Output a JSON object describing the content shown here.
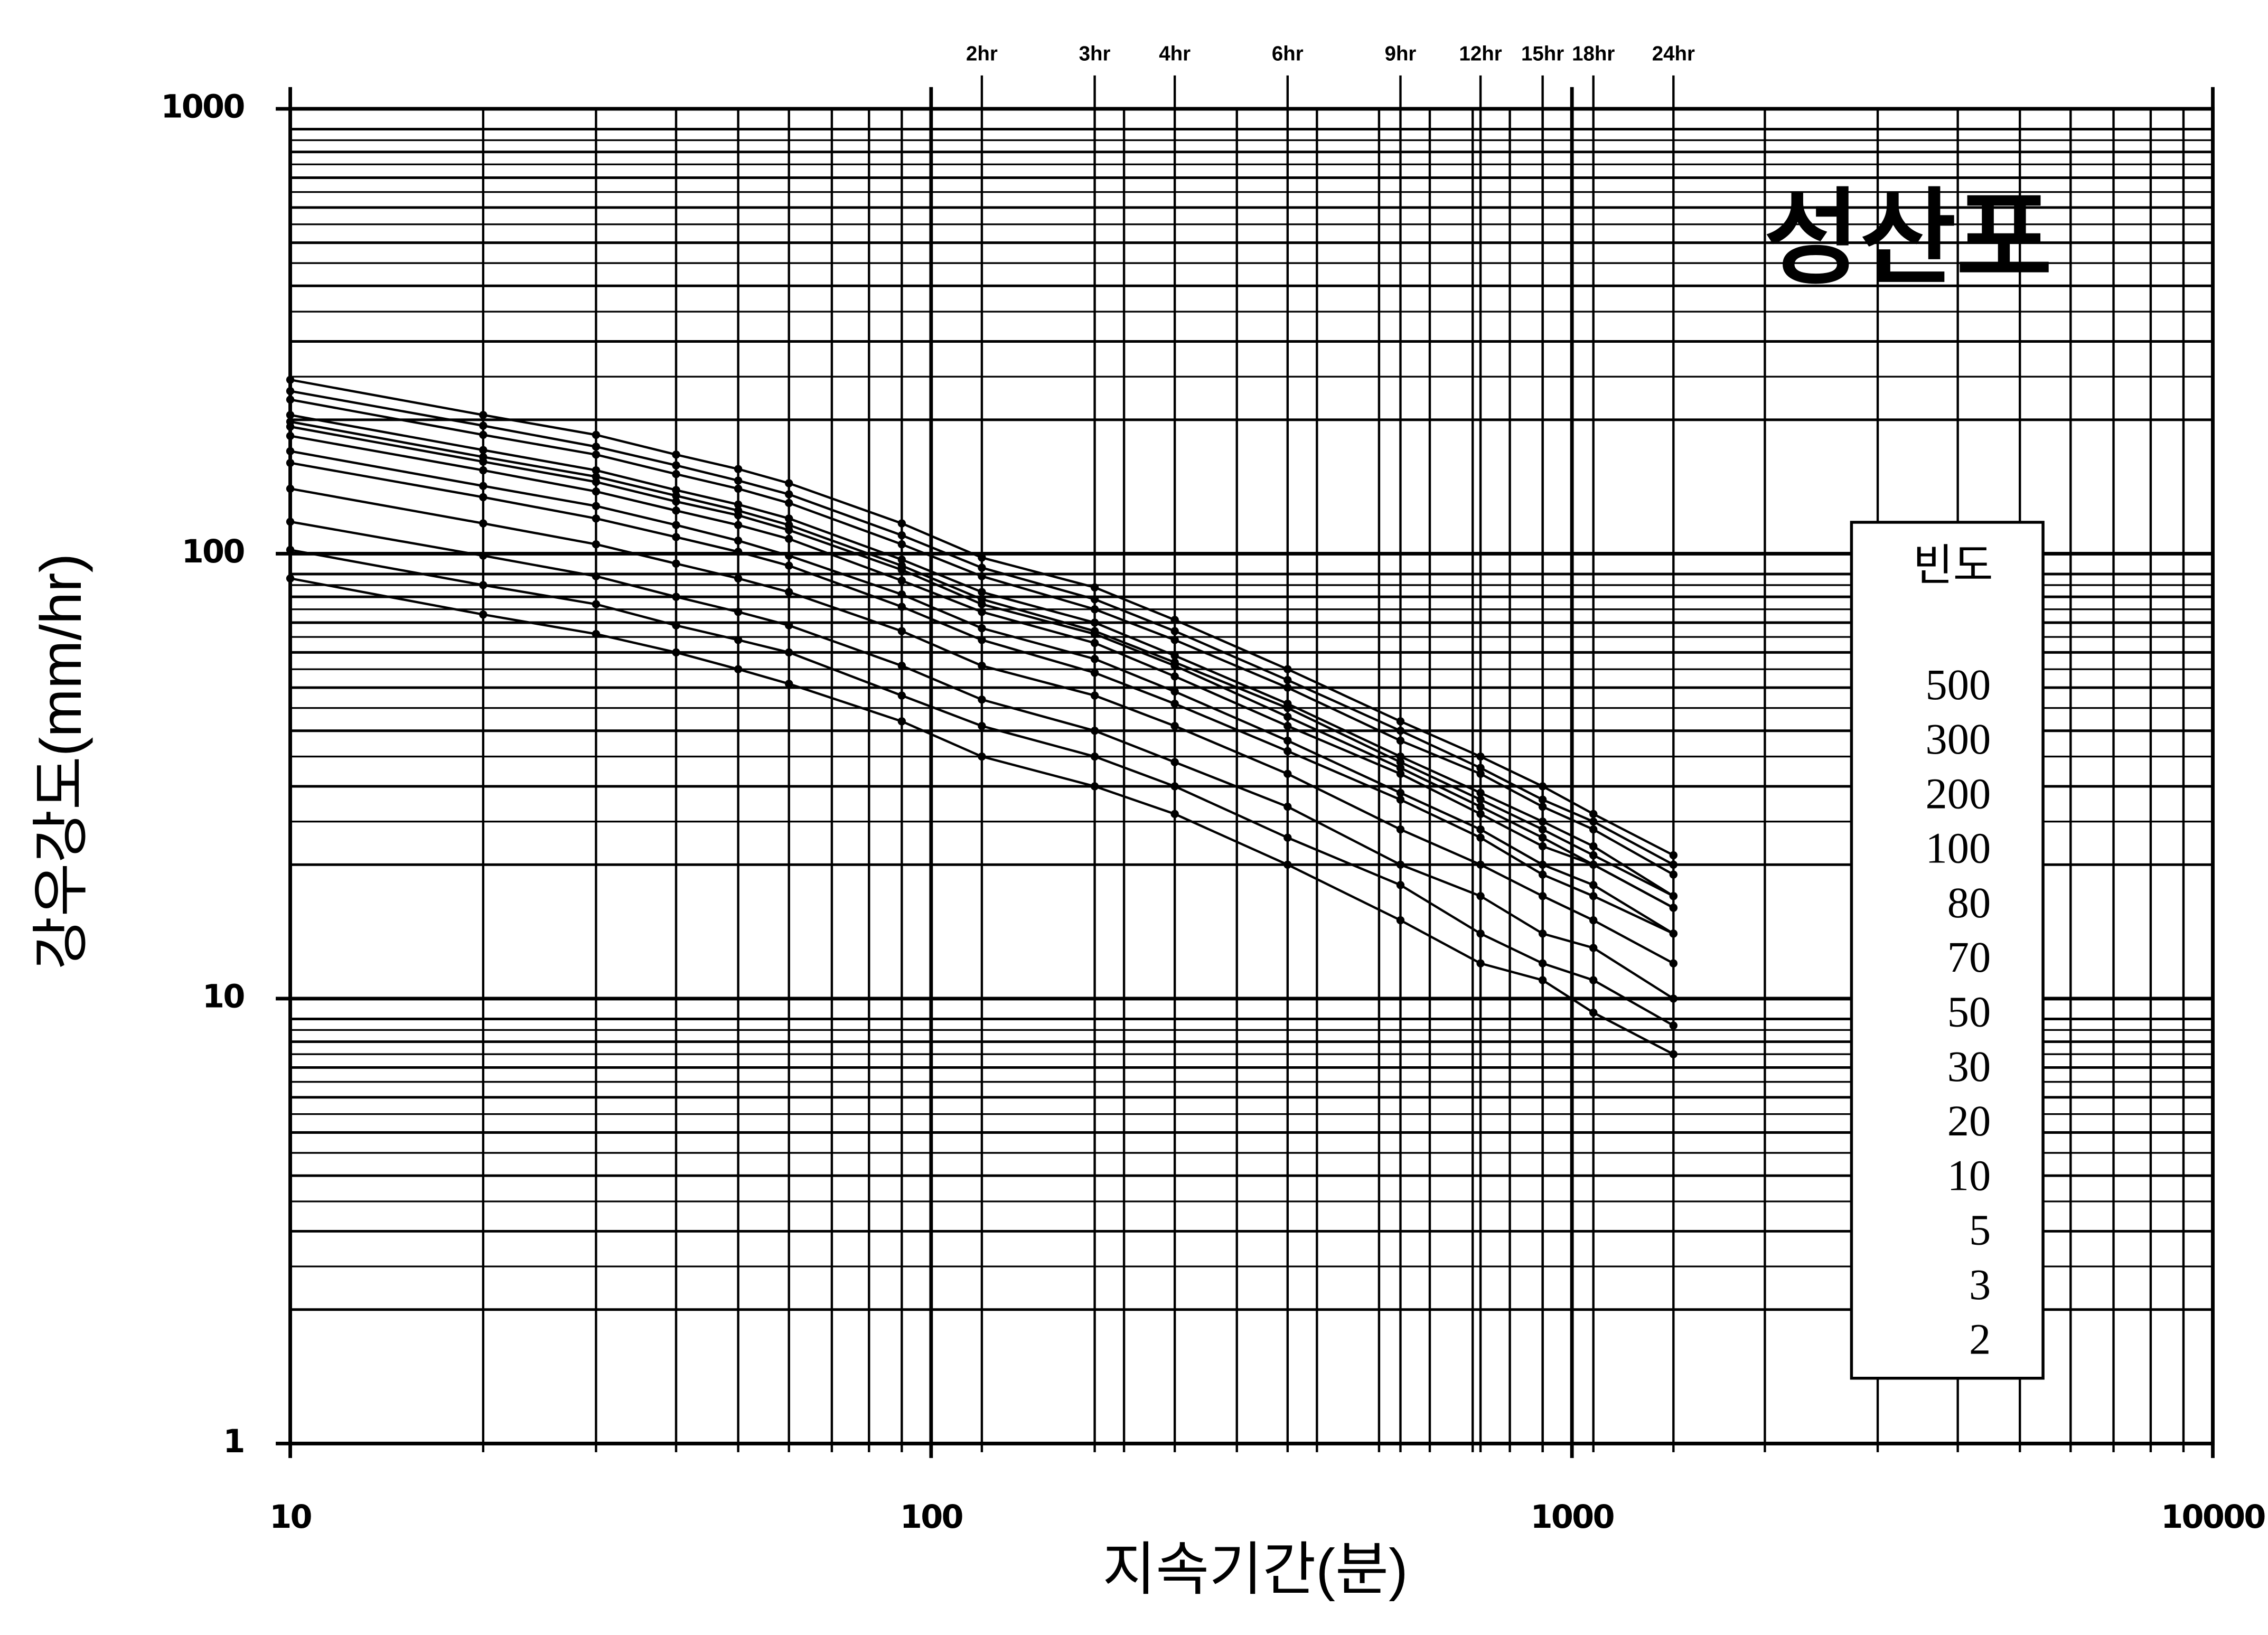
{
  "chart_data": {
    "type": "line",
    "title": "성산포",
    "x_label": "지속기간(분)",
    "y_label": "강우강도(mm/hr)",
    "log_x": true,
    "log_y": true,
    "grid": true,
    "xlim": [
      10,
      10000
    ],
    "ylim": [
      1,
      1000
    ],
    "xticks": [
      10,
      100,
      1000,
      10000
    ],
    "yticks": [
      1,
      10,
      100,
      1000
    ],
    "x2ticks": [
      {
        "value": 120,
        "label": "2hr"
      },
      {
        "value": 180,
        "label": "3hr"
      },
      {
        "value": 240,
        "label": "4hr"
      },
      {
        "value": 360,
        "label": "6hr"
      },
      {
        "value": 540,
        "label": "9hr"
      },
      {
        "value": 720,
        "label": "12hr"
      },
      {
        "value": 900,
        "label": "15hr"
      },
      {
        "value": 1080,
        "label": "18hr"
      },
      {
        "value": 1440,
        "label": "24hr"
      }
    ],
    "legend": "right",
    "legend_title": "빈도",
    "x": [
      10,
      20,
      30,
      40,
      50,
      60,
      90,
      120,
      180,
      240,
      360,
      540,
      720,
      900,
      1080,
      1440
    ],
    "series": [
      {
        "name": "500",
        "color": "#000000",
        "values": [
          246,
          205,
          185,
          167,
          155,
          144,
          117,
          98,
          84,
          71,
          55,
          42,
          35,
          30,
          26,
          21
        ]
      },
      {
        "name": "300",
        "color": "#000000",
        "values": [
          232,
          194,
          174,
          158,
          146,
          136,
          110,
          93,
          79,
          67,
          52,
          40,
          33,
          28,
          25,
          20
        ]
      },
      {
        "name": "200",
        "color": "#000000",
        "values": [
          222,
          185,
          167,
          151,
          140,
          130,
          105,
          89,
          75,
          64,
          50,
          38,
          32,
          27,
          24,
          19
        ]
      },
      {
        "name": "100",
        "color": "#000000",
        "values": [
          205,
          171,
          154,
          139,
          129,
          120,
          97,
          82,
          70,
          59,
          46,
          35,
          29,
          25,
          22,
          17
        ]
      },
      {
        "name": "80",
        "color": "#000000",
        "values": [
          198,
          165,
          149,
          135,
          125,
          116,
          94,
          79,
          67,
          57,
          45,
          34,
          28,
          24,
          21,
          17
        ]
      },
      {
        "name": "70",
        "color": "#000000",
        "values": [
          193,
          161,
          145,
          131,
          122,
          113,
          92,
          77,
          66,
          56,
          43,
          33,
          27,
          23,
          20,
          16
        ]
      },
      {
        "name": "50",
        "color": "#000000",
        "values": [
          184,
          154,
          138,
          125,
          116,
          108,
          87,
          74,
          63,
          53,
          41,
          32,
          26,
          22,
          20,
          16
        ]
      },
      {
        "name": "30",
        "color": "#000000",
        "values": [
          170,
          142,
          128,
          116,
          107,
          99,
          81,
          68,
          58,
          49,
          38,
          29,
          24,
          20,
          18,
          14
        ]
      },
      {
        "name": "20",
        "color": "#000000",
        "values": [
          160,
          134,
          120,
          109,
          101,
          94,
          76,
          64,
          54,
          46,
          36,
          28,
          23,
          19,
          17,
          14
        ]
      },
      {
        "name": "10",
        "color": "#000000",
        "values": [
          140,
          117,
          105,
          95,
          88,
          82,
          67,
          56,
          48,
          41,
          32,
          24,
          20,
          17,
          15,
          12
        ]
      },
      {
        "name": "5",
        "color": "#000000",
        "values": [
          118,
          99,
          89,
          80,
          74,
          69,
          56,
          47,
          40,
          34,
          27,
          20,
          17,
          14,
          13,
          10
        ]
      },
      {
        "name": "3",
        "color": "#000000",
        "values": [
          102,
          85,
          77,
          69,
          64,
          60,
          48,
          41,
          35,
          30,
          23,
          18,
          14,
          12,
          11,
          8.7
        ]
      },
      {
        "name": "2",
        "color": "#000000",
        "values": [
          88,
          73,
          66,
          60,
          55,
          51,
          42,
          35,
          30,
          26,
          20,
          15,
          12,
          11,
          9.3,
          7.5
        ]
      }
    ]
  }
}
